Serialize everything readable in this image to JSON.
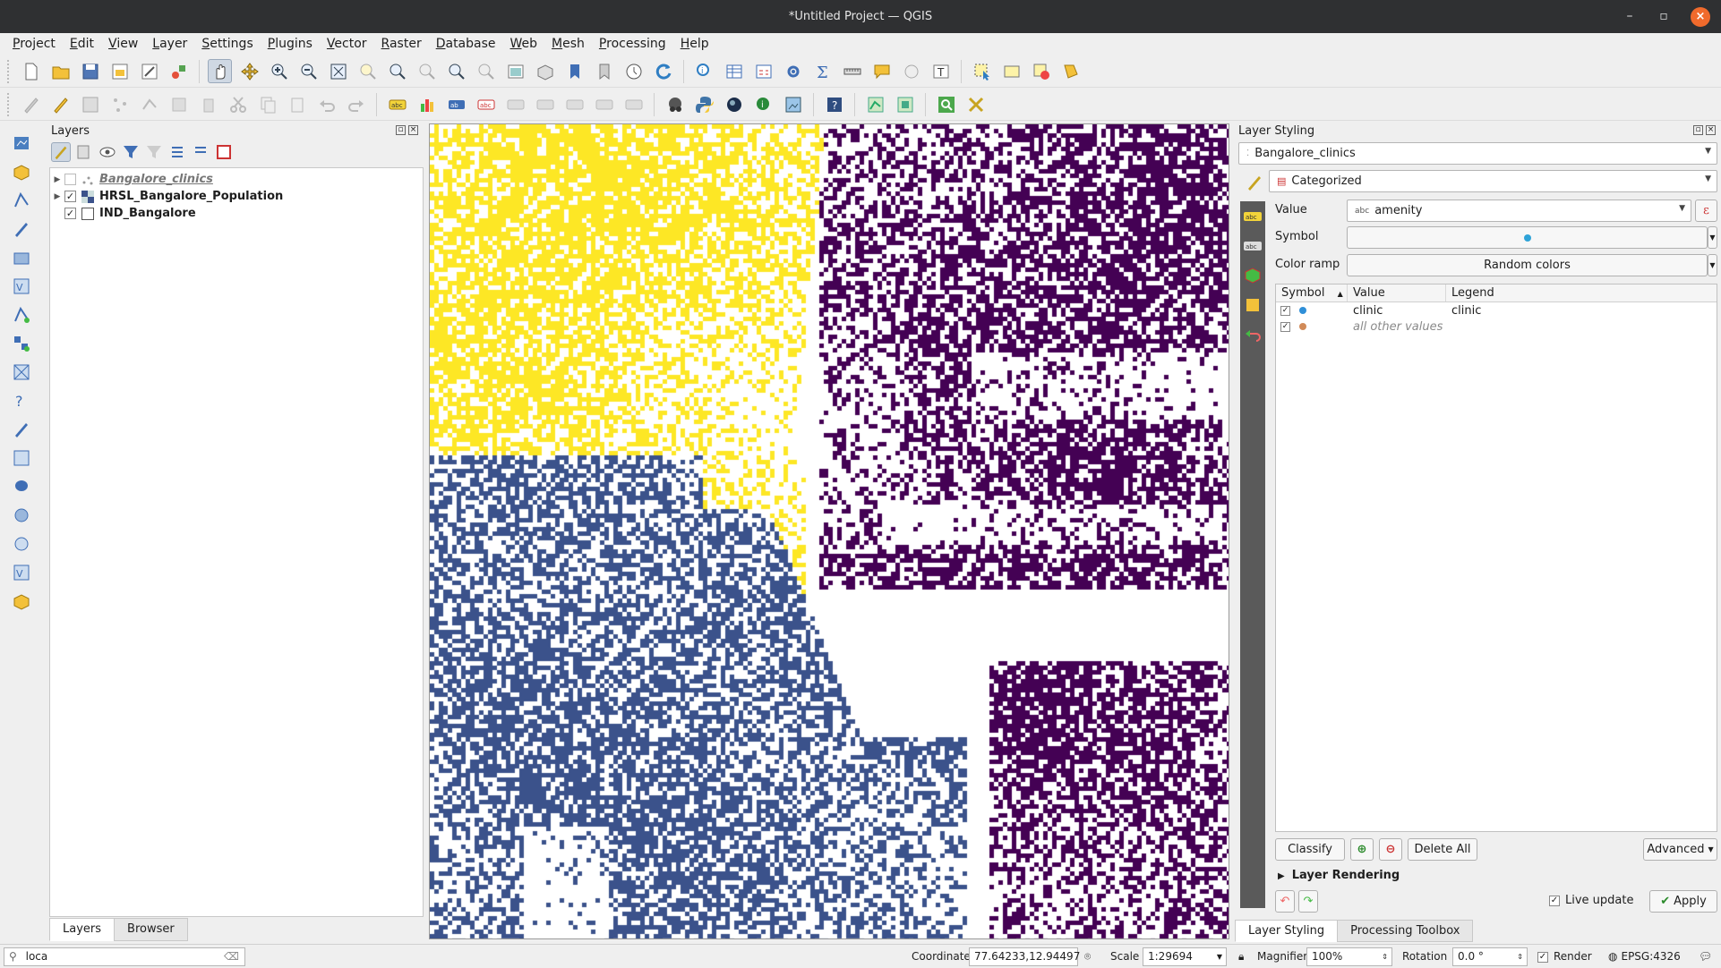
{
  "window": {
    "title": "*Untitled Project — QGIS"
  },
  "menu": [
    "Project",
    "Edit",
    "View",
    "Layer",
    "Settings",
    "Plugins",
    "Vector",
    "Raster",
    "Database",
    "Web",
    "Mesh",
    "Processing",
    "Help"
  ],
  "layers_panel": {
    "title": "Layers",
    "layers": [
      {
        "name": "Bangalore_clinics",
        "checked": false
      },
      {
        "name": "HRSL_Bangalore_Population",
        "checked": true
      },
      {
        "name": "IND_Bangalore",
        "checked": true
      }
    ],
    "tabs": {
      "layers": "Layers",
      "browser": "Browser"
    }
  },
  "styling": {
    "title": "Layer Styling",
    "layer": "Bangalore_clinics",
    "renderer": "Categorized",
    "value_label": "Value",
    "value": "amenity",
    "value_type_badge": "abc",
    "symbol_label": "Symbol",
    "ramp_label": "Color ramp",
    "ramp": "Random colors",
    "table_headers": {
      "symbol": "Symbol",
      "value": "Value",
      "legend": "Legend"
    },
    "categories": [
      {
        "value": "clinic",
        "legend": "clinic",
        "color": "#2f8fd8"
      },
      {
        "value": "all other values",
        "legend": "",
        "color": "#d18a58"
      }
    ],
    "buttons": {
      "classify": "Classify",
      "delete_all": "Delete All",
      "advanced": "Advanced",
      "apply": "Apply"
    },
    "layer_rendering": "Layer Rendering",
    "live_update": "Live update",
    "tabs": {
      "styling": "Layer Styling",
      "toolbox": "Processing Toolbox"
    }
  },
  "statusbar": {
    "search": "loca",
    "coordinate_label": "Coordinate",
    "coordinate": "77.64233,12.94497",
    "scale_label": "Scale",
    "scale": "1:29694",
    "magnifier_label": "Magnifier",
    "magnifier": "100%",
    "rotation_label": "Rotation",
    "rotation": "0.0 °",
    "render_label": "Render",
    "crs": "EPSG:4326"
  },
  "map_colors": {
    "west": "#fde725",
    "east": "#440154",
    "south": "#3b528b"
  }
}
